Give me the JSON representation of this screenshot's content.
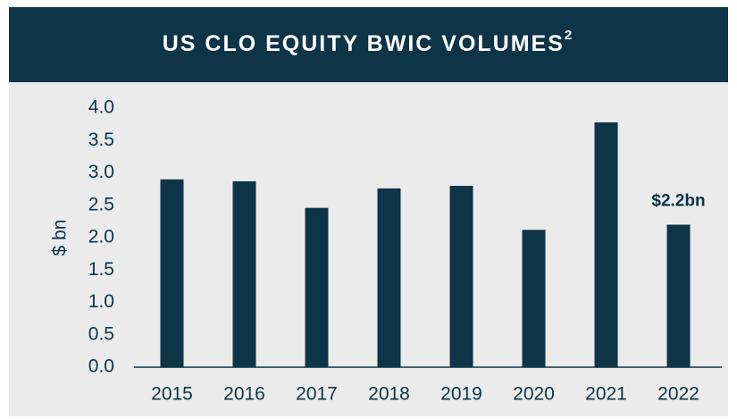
{
  "chart_data": {
    "type": "bar",
    "title": "US CLO EQUITY BWIC VOLUMES",
    "title_footnote": "2",
    "y_label": "$ bn",
    "categories": [
      "2015",
      "2016",
      "2017",
      "2018",
      "2019",
      "2020",
      "2021",
      "2022"
    ],
    "values": [
      2.9,
      2.87,
      2.46,
      2.76,
      2.8,
      2.12,
      3.78,
      2.2
    ],
    "value_labels": [
      null,
      null,
      null,
      null,
      null,
      null,
      null,
      "$2.2bn"
    ],
    "color": "#0d3447",
    "ylim": [
      0,
      4
    ],
    "yticks": [
      {
        "value": 0,
        "label": "0.0"
      },
      0.5,
      {
        "value": 1,
        "label": "1.0"
      },
      1.5,
      {
        "value": 2,
        "label": "2.0"
      },
      2.5,
      {
        "value": 3,
        "label": "3.0"
      },
      3.5,
      {
        "value": 4,
        "label": "4.0"
      }
    ],
    "grid": false
  }
}
